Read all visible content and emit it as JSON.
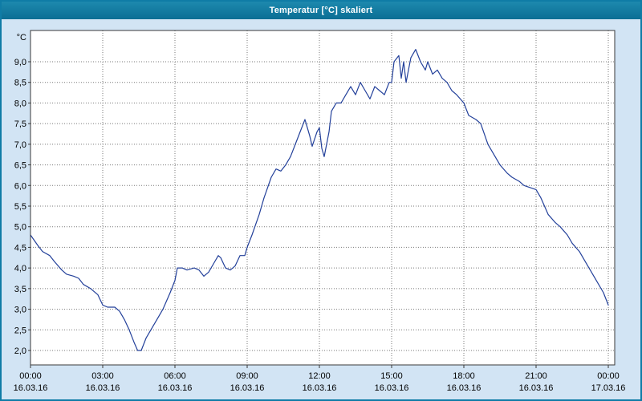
{
  "window": {
    "title": "Temperatur [°C] skaliert",
    "titlebar_color": "#0f7ca6",
    "background_color": "#d2e4f4"
  },
  "chart_data": {
    "type": "line",
    "title": "Temperatur [°C] skaliert",
    "unit_label": "°C",
    "line_color": "#23409a",
    "grid_color": "#7a7a7a",
    "border_color": "#3a3a3a",
    "text_color": "#000000",
    "plot_background": "#ffffff",
    "ylim": [
      1.65,
      9.75
    ],
    "xlim_hours": [
      0,
      24
    ],
    "y_ticks": [
      2.0,
      2.5,
      3.0,
      3.5,
      4.0,
      4.5,
      5.0,
      5.5,
      6.0,
      6.5,
      7.0,
      7.5,
      8.0,
      8.5,
      9.0
    ],
    "y_tick_labels": [
      "2,0",
      "2,5",
      "3,0",
      "3,5",
      "4,0",
      "4,5",
      "5,0",
      "5,5",
      "6,0",
      "6,5",
      "7,0",
      "7,5",
      "8,0",
      "8,5",
      "9,0"
    ],
    "x_ticks": [
      {
        "hour": 0,
        "time": "00:00",
        "date": "16.03.16"
      },
      {
        "hour": 3,
        "time": "03:00",
        "date": "16.03.16"
      },
      {
        "hour": 6,
        "time": "06:00",
        "date": "16.03.16"
      },
      {
        "hour": 9,
        "time": "09:00",
        "date": "16.03.16"
      },
      {
        "hour": 12,
        "time": "12:00",
        "date": "16.03.16"
      },
      {
        "hour": 15,
        "time": "15:00",
        "date": "16.03.16"
      },
      {
        "hour": 18,
        "time": "18:00",
        "date": "16.03.16"
      },
      {
        "hour": 21,
        "time": "21:00",
        "date": "16.03.16"
      },
      {
        "hour": 24,
        "time": "00:00",
        "date": "17.03.16"
      }
    ],
    "series": [
      {
        "name": "Temperatur",
        "points": [
          [
            0.0,
            4.8
          ],
          [
            0.3,
            4.55
          ],
          [
            0.5,
            4.4
          ],
          [
            0.8,
            4.3
          ],
          [
            1.0,
            4.15
          ],
          [
            1.3,
            3.95
          ],
          [
            1.5,
            3.85
          ],
          [
            1.8,
            3.8
          ],
          [
            2.0,
            3.75
          ],
          [
            2.2,
            3.6
          ],
          [
            2.5,
            3.5
          ],
          [
            2.8,
            3.35
          ],
          [
            3.0,
            3.1
          ],
          [
            3.2,
            3.05
          ],
          [
            3.5,
            3.05
          ],
          [
            3.7,
            2.95
          ],
          [
            3.9,
            2.75
          ],
          [
            4.1,
            2.5
          ],
          [
            4.3,
            2.2
          ],
          [
            4.45,
            2.0
          ],
          [
            4.6,
            2.0
          ],
          [
            4.8,
            2.3
          ],
          [
            5.0,
            2.5
          ],
          [
            5.3,
            2.8
          ],
          [
            5.5,
            3.0
          ],
          [
            5.8,
            3.4
          ],
          [
            6.0,
            3.7
          ],
          [
            6.1,
            4.0
          ],
          [
            6.3,
            4.0
          ],
          [
            6.5,
            3.95
          ],
          [
            6.8,
            4.0
          ],
          [
            7.0,
            3.95
          ],
          [
            7.2,
            3.8
          ],
          [
            7.4,
            3.9
          ],
          [
            7.6,
            4.1
          ],
          [
            7.8,
            4.3
          ],
          [
            7.9,
            4.25
          ],
          [
            8.1,
            4.0
          ],
          [
            8.3,
            3.95
          ],
          [
            8.5,
            4.05
          ],
          [
            8.7,
            4.3
          ],
          [
            8.9,
            4.3
          ],
          [
            9.0,
            4.5
          ],
          [
            9.2,
            4.8
          ],
          [
            9.5,
            5.3
          ],
          [
            9.7,
            5.7
          ],
          [
            10.0,
            6.2
          ],
          [
            10.2,
            6.4
          ],
          [
            10.4,
            6.35
          ],
          [
            10.6,
            6.5
          ],
          [
            10.8,
            6.7
          ],
          [
            11.0,
            7.0
          ],
          [
            11.2,
            7.3
          ],
          [
            11.4,
            7.6
          ],
          [
            11.6,
            7.2
          ],
          [
            11.7,
            6.95
          ],
          [
            11.9,
            7.3
          ],
          [
            12.0,
            7.4
          ],
          [
            12.1,
            6.9
          ],
          [
            12.2,
            6.7
          ],
          [
            12.4,
            7.3
          ],
          [
            12.5,
            7.8
          ],
          [
            12.7,
            8.0
          ],
          [
            12.9,
            8.0
          ],
          [
            13.1,
            8.2
          ],
          [
            13.3,
            8.4
          ],
          [
            13.5,
            8.2
          ],
          [
            13.7,
            8.5
          ],
          [
            13.9,
            8.3
          ],
          [
            14.1,
            8.1
          ],
          [
            14.3,
            8.4
          ],
          [
            14.5,
            8.3
          ],
          [
            14.7,
            8.2
          ],
          [
            14.9,
            8.5
          ],
          [
            15.0,
            8.5
          ],
          [
            15.1,
            9.0
          ],
          [
            15.3,
            9.15
          ],
          [
            15.4,
            8.6
          ],
          [
            15.5,
            9.0
          ],
          [
            15.6,
            8.5
          ],
          [
            15.8,
            9.1
          ],
          [
            16.0,
            9.3
          ],
          [
            16.2,
            9.0
          ],
          [
            16.4,
            8.8
          ],
          [
            16.5,
            9.0
          ],
          [
            16.7,
            8.7
          ],
          [
            16.9,
            8.8
          ],
          [
            17.1,
            8.6
          ],
          [
            17.3,
            8.5
          ],
          [
            17.5,
            8.3
          ],
          [
            17.7,
            8.2
          ],
          [
            18.0,
            8.0
          ],
          [
            18.2,
            7.7
          ],
          [
            18.5,
            7.6
          ],
          [
            18.7,
            7.5
          ],
          [
            19.0,
            7.0
          ],
          [
            19.3,
            6.7
          ],
          [
            19.5,
            6.5
          ],
          [
            19.8,
            6.3
          ],
          [
            20.0,
            6.2
          ],
          [
            20.3,
            6.1
          ],
          [
            20.5,
            6.0
          ],
          [
            21.0,
            5.9
          ],
          [
            21.2,
            5.7
          ],
          [
            21.5,
            5.3
          ],
          [
            21.8,
            5.1
          ],
          [
            22.0,
            5.0
          ],
          [
            22.3,
            4.8
          ],
          [
            22.5,
            4.6
          ],
          [
            22.8,
            4.4
          ],
          [
            23.0,
            4.2
          ],
          [
            23.3,
            3.9
          ],
          [
            23.5,
            3.7
          ],
          [
            23.8,
            3.4
          ],
          [
            24.0,
            3.1
          ]
        ]
      }
    ]
  }
}
